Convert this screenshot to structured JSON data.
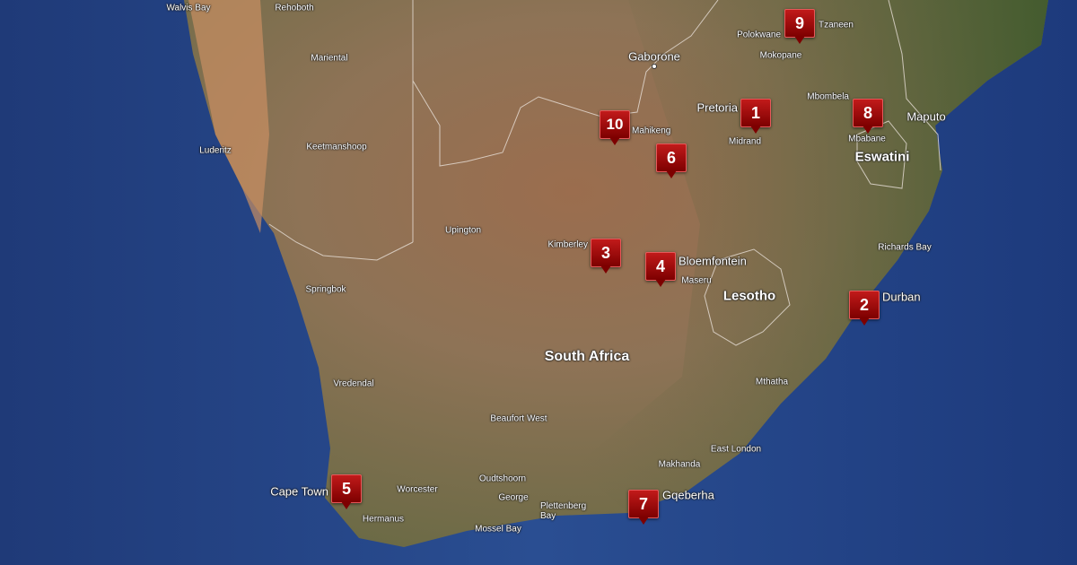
{
  "map": {
    "view": "satellite",
    "colors": {
      "ocean": "#23407e",
      "land_desert": "#b07a55",
      "land_green": "#5d6a3c",
      "marker": "#a50d0d"
    },
    "countries": [
      "South Africa",
      "Lesotho",
      "Eswatini"
    ],
    "cities": {
      "walvis_bay": "Walvis Bay",
      "rehoboth": "Rehoboth",
      "mariental": "Mariental",
      "luderitz": "Luderitz",
      "keetmanshoop": "Keetmanshoop",
      "gaborone": "Gaborone",
      "polokwane": "Polokwane",
      "tzaneen": "Tzaneen",
      "mokopane": "Mokopane",
      "pretoria": "Pretoria",
      "midrand": "Midrand",
      "mahikeng": "Mahikeng",
      "mbombela": "Mbombela",
      "maputo": "Maputo",
      "mbabane": "Mbabane",
      "upington": "Upington",
      "kimberley": "Kimberley",
      "bloemfontein": "Bloemfontein",
      "maseru": "Maseru",
      "richards_bay": "Richards Bay",
      "durban": "Durban",
      "springbok": "Springbok",
      "mthatha": "Mthatha",
      "vredendal": "Vredendal",
      "beaufort_west": "Beaufort West",
      "east_london": "East London",
      "makhanda": "Makhanda",
      "oudtshoorn": "Oudtshoorn",
      "cape_town": "Cape Town",
      "worcester": "Worcester",
      "george": "George",
      "plettenberg_bay": "Plettenberg Bay",
      "gqeberha": "Gqeberha",
      "hermanus": "Hermanus",
      "mossel_bay": "Mossel Bay"
    },
    "markers": [
      "1",
      "2",
      "3",
      "4",
      "5",
      "6",
      "7",
      "8",
      "9",
      "10"
    ]
  }
}
